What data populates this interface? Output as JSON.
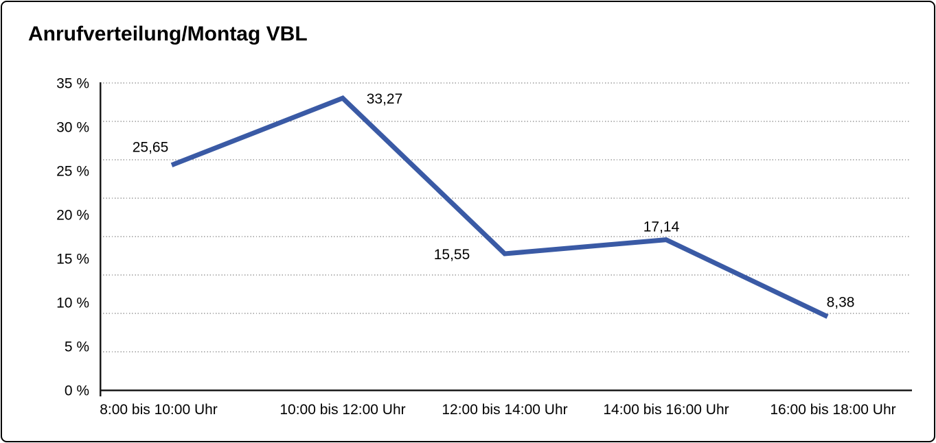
{
  "window": {
    "background_color": "#ffffff",
    "border_color": "#000000"
  },
  "chart_data": {
    "type": "line",
    "title": "Anrufverteilung/Montag VBL",
    "categories": [
      "8:00 bis 10:00 Uhr",
      "10:00 bis 12:00 Uhr",
      "12:00 bis 14:00 Uhr",
      "14:00 bis 16:00 Uhr",
      "16:00 bis 18:00 Uhr"
    ],
    "values": [
      25.65,
      33.27,
      15.55,
      17.14,
      8.38
    ],
    "point_labels": [
      "25,65",
      "33,27",
      "15,55",
      "17,14",
      "8,38"
    ],
    "y_ticks": [
      "0 %",
      "5 %",
      "10 %",
      "15 %",
      "20 %",
      "25 %",
      "30 %",
      "35 %"
    ],
    "ylim": [
      0,
      35
    ],
    "xlabel": "",
    "ylabel": "",
    "grid": true,
    "grid_intervals": 8,
    "legend": "none",
    "line_color": "#3a5aa5",
    "axis_color": "#1a1a1a",
    "grid_color": "#666666",
    "text_color": "#000000"
  }
}
